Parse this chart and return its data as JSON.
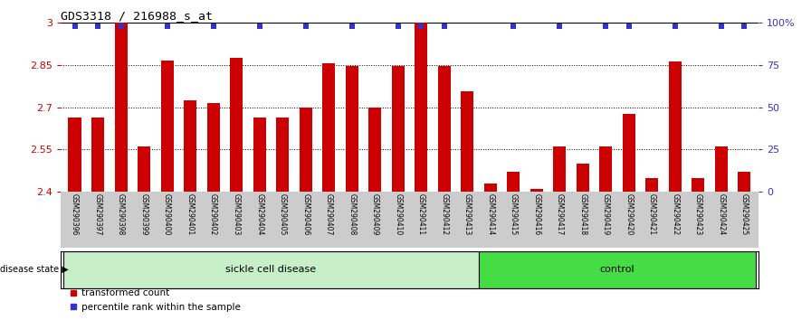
{
  "title": "GDS3318 / 216988_s_at",
  "samples": [
    "GSM290396",
    "GSM290397",
    "GSM290398",
    "GSM290399",
    "GSM290400",
    "GSM290401",
    "GSM290402",
    "GSM290403",
    "GSM290404",
    "GSM290405",
    "GSM290406",
    "GSM290407",
    "GSM290408",
    "GSM290409",
    "GSM290410",
    "GSM290411",
    "GSM290412",
    "GSM290413",
    "GSM290414",
    "GSM290415",
    "GSM290416",
    "GSM290417",
    "GSM290418",
    "GSM290419",
    "GSM290420",
    "GSM290421",
    "GSM290422",
    "GSM290423",
    "GSM290424",
    "GSM290425"
  ],
  "bar_values_left": [
    2.665,
    2.665,
    3.0,
    2.56,
    2.865,
    2.725,
    2.715,
    2.875,
    2.665,
    2.665,
    2.7,
    2.855,
    2.845,
    2.7,
    2.845,
    3.0,
    2.845,
    2.755,
    null,
    null,
    null,
    null,
    null,
    null,
    null,
    null,
    null,
    null,
    null,
    null
  ],
  "bar_values_right": [
    null,
    null,
    null,
    null,
    null,
    null,
    null,
    null,
    null,
    null,
    null,
    null,
    null,
    null,
    null,
    null,
    null,
    null,
    5,
    12,
    2,
    27,
    17,
    27,
    46,
    8,
    77,
    8,
    27,
    12
  ],
  "blue_dots_pct": [
    98,
    98,
    98,
    98,
    98,
    98,
    98,
    98,
    98,
    98,
    98,
    98,
    98,
    98,
    98,
    98,
    98,
    98,
    98,
    98,
    98,
    98,
    98,
    98,
    98,
    98,
    98,
    98,
    98,
    98
  ],
  "blue_dot_visible": [
    1,
    1,
    1,
    0,
    1,
    0,
    1,
    0,
    1,
    0,
    1,
    0,
    1,
    0,
    1,
    1,
    1,
    0,
    0,
    1,
    0,
    1,
    0,
    1,
    1,
    0,
    1,
    0,
    1,
    1
  ],
  "sickle_count": 18,
  "ylim_left": [
    2.4,
    3.0
  ],
  "ylim_right": [
    0,
    100
  ],
  "yticks_left": [
    2.4,
    2.55,
    2.7,
    2.85,
    3.0
  ],
  "yticks_right": [
    0,
    25,
    50,
    75,
    100
  ],
  "ytick_labels_left": [
    "2.4",
    "2.55",
    "2.7",
    "2.85",
    "3"
  ],
  "ytick_labels_right": [
    "0",
    "25",
    "50",
    "75",
    "100%"
  ],
  "bar_color": "#cc0000",
  "dot_color": "#3333cc",
  "sickle_bg": "#c8f0c8",
  "control_bg": "#44dd44",
  "sickle_label": "sickle cell disease",
  "control_label": "control",
  "disease_state_label": "disease state",
  "legend_bar_label": "transformed count",
  "legend_dot_label": "percentile rank within the sample",
  "tick_label_area_color": "#cccccc"
}
